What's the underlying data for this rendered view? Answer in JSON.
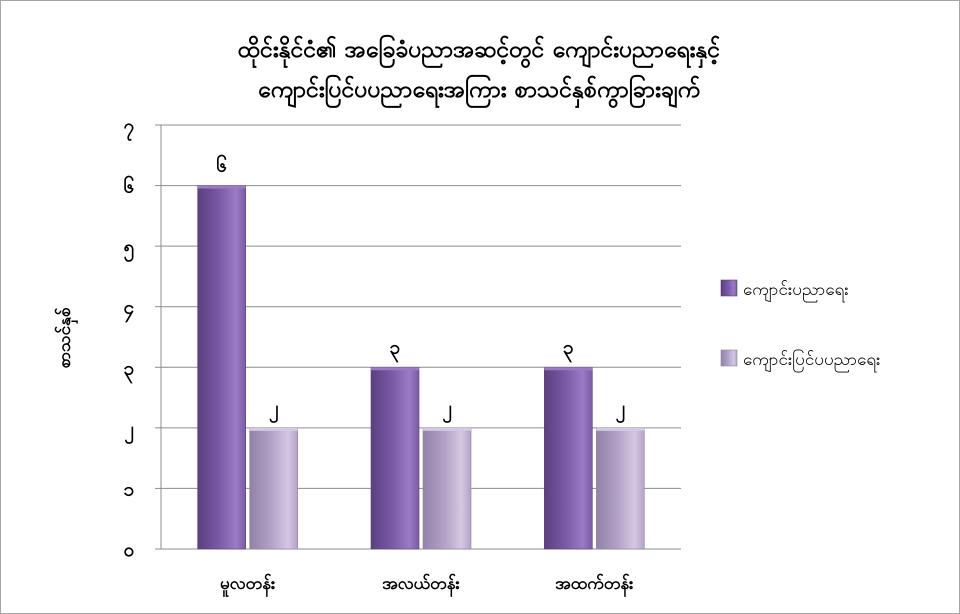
{
  "chart_data": {
    "type": "bar",
    "title": [
      "ထိုင်းနိုင်ငံ၏ အခြေခံပညာအဆင့်တွင် ကျောင်းပညာရေးနှင့်",
      "ကျောင်းပြင်ပပညာရေးအကြား စာသင်နှစ်ကွာခြားချက်"
    ],
    "ylabel": "စာသင်နှစ်",
    "xlabel": "",
    "categories": [
      "မူလတန်း",
      "အလယ်တန်း",
      "အထက်တန်း"
    ],
    "series": [
      {
        "name": "ကျောင်းပညာရေး",
        "values": [
          6,
          3,
          3
        ],
        "labels": [
          "၆",
          "၃",
          "၃"
        ],
        "color": "#7b5aa6",
        "dark": "#5a3f80",
        "light": "#9b7bc4"
      },
      {
        "name": "ကျောင်းပြင်ပပညာရေး",
        "values": [
          2,
          2,
          2
        ],
        "labels": [
          "၂",
          "၂",
          "၂"
        ],
        "color": "#b3a2c7",
        "dark": "#9282a8",
        "light": "#d4c8e2"
      }
    ],
    "ylim": [
      0,
      7
    ],
    "yticks": [
      0,
      1,
      2,
      3,
      4,
      5,
      6,
      7
    ],
    "ytick_labels": [
      "၀",
      "၁",
      "၂",
      "၃",
      "၄",
      "၅",
      "၆",
      "၇"
    ],
    "grid": true,
    "legend_position": "right"
  }
}
